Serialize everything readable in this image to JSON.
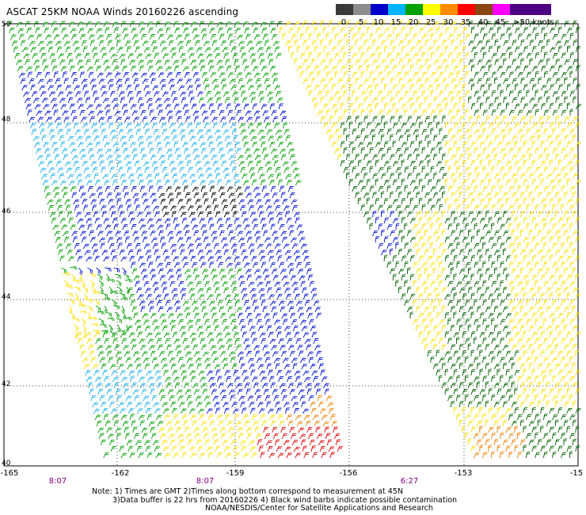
{
  "title": "ASCAT 25KM NOAA Winds 20160226 ascending",
  "legend": {
    "ticks": [
      "0",
      "5",
      "10",
      "15",
      "20",
      "25",
      "30",
      "35",
      "40",
      "45",
      ">50 knots"
    ],
    "colors": [
      "#3a3a3a",
      "#8c8c8c",
      "#0000c8",
      "#00b4ff",
      "#00a000",
      "#ffff00",
      "#ff8c00",
      "#ff0000",
      "#8b4513",
      "#ff00ff",
      "#4b0082"
    ]
  },
  "lat_labels": [
    "50",
    "48",
    "46",
    "44",
    "42",
    "40"
  ],
  "lon_labels": [
    "-165",
    "-162",
    "-159",
    "-156",
    "-153",
    "-15"
  ],
  "time_labels": [
    "8:07",
    "8:07",
    "6:27"
  ],
  "notes": [
    "Note: 1) Times are GMT 2)Times along bottom correspond to measurement at 45N",
    "3)Data buffer is 22 hrs from 20160226 4) Black wind barbs indicate possible contamination",
    "NOAA/NESDIS/Center for Satellite Applications and Research"
  ]
}
